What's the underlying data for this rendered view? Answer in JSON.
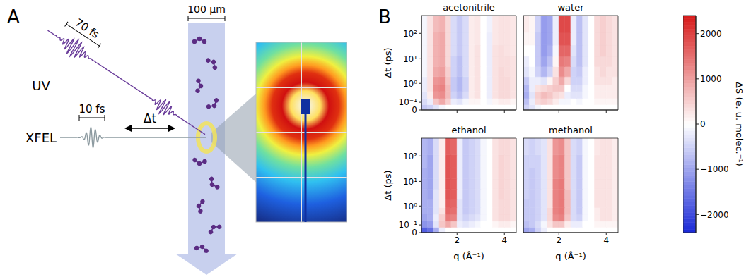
{
  "panel_a": {
    "label": "A",
    "uv": {
      "label": "UV",
      "duration": "70 fs"
    },
    "xfel": {
      "label": "XFEL",
      "duration": "10 fs"
    },
    "delay": "Δt",
    "jet_width": "100 µm"
  },
  "panel_b": {
    "label": "B"
  },
  "colorbar": {
    "label": "ΔS (e. u. molec.⁻¹)",
    "range": [
      -2400,
      2400
    ],
    "ticks": [
      {
        "value": -2000,
        "label": "−2000"
      },
      {
        "value": -1000,
        "label": "−1000"
      },
      0,
      1000,
      2000
    ]
  },
  "chart_data": [
    {
      "type": "heatmap",
      "title": "acetonitrile",
      "y_label": "Δt (ps)",
      "log": "y",
      "tick_labels": "y",
      "xlim": [
        0.5,
        4.5
      ],
      "xticks": [
        2,
        4
      ],
      "ylim": [
        0,
        500
      ],
      "yticks": [
        0,
        {
          "value": 0.1,
          "label": "10⁻¹"
        },
        {
          "value": 1,
          "label": "10⁰"
        },
        {
          "value": 10,
          "label": "10¹"
        },
        {
          "value": 100,
          "label": "10²"
        }
      ],
      "x": [
        0.625,
        0.875,
        1.125,
        1.375,
        1.625,
        1.875,
        2.125,
        2.375,
        2.625,
        2.875,
        3.125,
        3.375,
        3.625,
        3.875,
        4.125,
        4.375
      ],
      "y": [
        0.03,
        0.1,
        0.3,
        0.6,
        1.2,
        3,
        8,
        20,
        60,
        200
      ],
      "cells": [
        [
          -600,
          -500,
          -300,
          -100,
          0,
          0,
          0,
          0,
          0,
          0,
          0,
          0,
          0,
          0,
          0,
          0
        ],
        [
          -400,
          -200,
          600,
          900,
          500,
          -200,
          -300,
          -100,
          100,
          100,
          0,
          -100,
          100,
          200,
          200,
          100
        ],
        [
          -300,
          200,
          1100,
          1200,
          700,
          -500,
          -700,
          -400,
          200,
          300,
          0,
          -200,
          300,
          400,
          400,
          300
        ],
        [
          -200,
          300,
          1200,
          1300,
          700,
          -600,
          -800,
          -500,
          200,
          300,
          0,
          -200,
          300,
          400,
          400,
          300
        ],
        [
          -200,
          300,
          1100,
          1200,
          600,
          -600,
          -800,
          -500,
          200,
          300,
          0,
          -200,
          300,
          400,
          400,
          300
        ],
        [
          -100,
          300,
          900,
          1000,
          500,
          -500,
          -700,
          -400,
          200,
          300,
          0,
          -200,
          300,
          400,
          350,
          300
        ],
        [
          -100,
          300,
          800,
          900,
          400,
          -500,
          -700,
          -400,
          200,
          300,
          0,
          -200,
          300,
          350,
          350,
          300
        ],
        [
          -100,
          300,
          800,
          900,
          400,
          -400,
          -600,
          -400,
          200,
          300,
          0,
          -200,
          300,
          350,
          300,
          250
        ],
        [
          -100,
          300,
          800,
          900,
          400,
          -400,
          -600,
          -400,
          200,
          250,
          0,
          -200,
          250,
          300,
          300,
          250
        ],
        [
          -100,
          300,
          700,
          800,
          400,
          -400,
          -600,
          -400,
          200,
          250,
          0,
          -150,
          250,
          300,
          300,
          250
        ]
      ]
    },
    {
      "type": "heatmap",
      "title": "water",
      "log": "y",
      "tick_labels": false,
      "xlim": [
        0.5,
        4.5
      ],
      "xticks": [
        2,
        4
      ],
      "ylim": [
        0,
        500
      ],
      "yticks": [
        0,
        {
          "value": 0.1,
          "label": "10⁻¹"
        },
        {
          "value": 1,
          "label": "10⁰"
        },
        {
          "value": 10,
          "label": "10¹"
        },
        {
          "value": 100,
          "label": "10²"
        }
      ],
      "x": [
        0.625,
        0.875,
        1.125,
        1.375,
        1.625,
        1.875,
        2.125,
        2.375,
        2.625,
        2.875,
        3.125,
        3.375,
        3.625,
        3.875,
        4.125,
        4.375
      ],
      "y": [
        0.03,
        0.1,
        0.3,
        0.6,
        1.2,
        3,
        8,
        20,
        60,
        200
      ],
      "cells": [
        [
          -500,
          -300,
          -100,
          0,
          0,
          0,
          0,
          0,
          0,
          0,
          0,
          0,
          0,
          0,
          0,
          0
        ],
        [
          -700,
          -200,
          400,
          500,
          400,
          200,
          -100,
          -100,
          0,
          -100,
          0,
          0,
          100,
          100,
          100,
          100
        ],
        [
          -900,
          -300,
          500,
          700,
          600,
          400,
          300,
          -200,
          -300,
          -300,
          -100,
          0,
          200,
          200,
          200,
          200
        ],
        [
          -800,
          -200,
          300,
          400,
          500,
          600,
          600,
          0,
          -400,
          -400,
          -100,
          0,
          200,
          200,
          200,
          200
        ],
        [
          -600,
          -200,
          -200,
          -300,
          100,
          500,
          900,
          400,
          -500,
          -500,
          -200,
          0,
          300,
          300,
          300,
          200
        ],
        [
          -300,
          -100,
          -500,
          -800,
          -500,
          300,
          1200,
          900,
          -500,
          -600,
          -200,
          0,
          300,
          400,
          300,
          300
        ],
        [
          -200,
          0,
          -600,
          -1000,
          -700,
          100,
          1400,
          1300,
          -400,
          -700,
          -300,
          0,
          400,
          400,
          400,
          300
        ],
        [
          0,
          0,
          -600,
          -1100,
          -900,
          -100,
          1600,
          1600,
          -300,
          -700,
          -300,
          0,
          400,
          500,
          400,
          300
        ],
        [
          100,
          100,
          -600,
          -1100,
          -1000,
          -200,
          1800,
          1800,
          -200,
          -700,
          -300,
          0,
          400,
          500,
          400,
          300
        ],
        [
          200,
          100,
          -500,
          -1100,
          -1000,
          -200,
          1900,
          1900,
          -200,
          -700,
          -300,
          0,
          400,
          500,
          400,
          300
        ]
      ]
    },
    {
      "type": "heatmap",
      "title": "ethanol",
      "x_label": "q (Å⁻¹)",
      "y_label": "Δt (ps)",
      "log": "y",
      "xlim": [
        0.5,
        4.5
      ],
      "xticks": [
        2,
        4
      ],
      "ylim": [
        0,
        500
      ],
      "yticks": [
        0,
        {
          "value": 0.1,
          "label": "10⁻¹"
        },
        {
          "value": 1,
          "label": "10⁰"
        },
        {
          "value": 10,
          "label": "10¹"
        },
        {
          "value": 100,
          "label": "10²"
        }
      ],
      "x": [
        0.625,
        0.875,
        1.125,
        1.375,
        1.625,
        1.875,
        2.125,
        2.375,
        2.625,
        2.875,
        3.125,
        3.375,
        3.625,
        3.875,
        4.125,
        4.375
      ],
      "y": [
        0.03,
        0.1,
        0.3,
        0.6,
        1.2,
        3,
        8,
        20,
        60,
        200
      ],
      "cells": [
        [
          -1800,
          -1600,
          -900,
          -200,
          0,
          0,
          0,
          0,
          0,
          0,
          0,
          0,
          0,
          0,
          0,
          0
        ],
        [
          -1200,
          -1100,
          -300,
          600,
          900,
          600,
          -200,
          -300,
          -200,
          -100,
          0,
          0,
          100,
          200,
          200,
          100
        ],
        [
          -1000,
          -900,
          -200,
          500,
          1400,
          1300,
          -300,
          -500,
          -400,
          -300,
          -100,
          0,
          300,
          400,
          400,
          300
        ],
        [
          -900,
          -900,
          -300,
          300,
          1600,
          1500,
          -300,
          -600,
          -500,
          -400,
          -100,
          0,
          300,
          400,
          400,
          300
        ],
        [
          -900,
          -900,
          -300,
          200,
          1700,
          1600,
          -300,
          -600,
          -500,
          -400,
          -100,
          0,
          300,
          400,
          400,
          300
        ],
        [
          -900,
          -1000,
          -300,
          200,
          1800,
          1700,
          -200,
          -600,
          -500,
          -400,
          -100,
          0,
          300,
          450,
          400,
          300
        ],
        [
          -900,
          -1000,
          -400,
          200,
          1800,
          1700,
          -200,
          -600,
          -500,
          -400,
          -100,
          0,
          300,
          450,
          400,
          300
        ],
        [
          -900,
          -1000,
          -400,
          200,
          1800,
          1700,
          -200,
          -600,
          -500,
          -400,
          -100,
          0,
          300,
          450,
          400,
          300
        ],
        [
          -800,
          -1000,
          -400,
          200,
          1800,
          1700,
          -200,
          -600,
          -500,
          -400,
          -100,
          0,
          300,
          450,
          400,
          300
        ],
        [
          -800,
          -900,
          -400,
          200,
          1700,
          1600,
          -200,
          -600,
          -500,
          -400,
          -100,
          0,
          300,
          400,
          400,
          300
        ]
      ]
    },
    {
      "type": "heatmap",
      "title": "methanol",
      "x_label": "q (Å⁻¹)",
      "log": "y",
      "tick_labels": "x",
      "xlim": [
        0.5,
        4.5
      ],
      "xticks": [
        2,
        4
      ],
      "ylim": [
        0,
        500
      ],
      "yticks": [
        0,
        {
          "value": 0.1,
          "label": "10⁻¹"
        },
        {
          "value": 1,
          "label": "10⁰"
        },
        {
          "value": 10,
          "label": "10¹"
        },
        {
          "value": 100,
          "label": "10²"
        }
      ],
      "x": [
        0.625,
        0.875,
        1.125,
        1.375,
        1.625,
        1.875,
        2.125,
        2.375,
        2.625,
        2.875,
        3.125,
        3.375,
        3.625,
        3.875,
        4.125,
        4.375
      ],
      "y": [
        0.03,
        0.1,
        0.3,
        0.6,
        1.2,
        3,
        8,
        20,
        60,
        200
      ],
      "cells": [
        [
          -1000,
          -900,
          -500,
          -200,
          0,
          0,
          0,
          0,
          0,
          0,
          0,
          0,
          0,
          0,
          0,
          0
        ],
        [
          -700,
          -600,
          -400,
          -100,
          300,
          600,
          600,
          200,
          -200,
          -200,
          0,
          0,
          100,
          100,
          100,
          100
        ],
        [
          -600,
          -600,
          -500,
          -300,
          400,
          1200,
          1300,
          600,
          -400,
          -500,
          -100,
          0,
          200,
          300,
          300,
          200
        ],
        [
          -600,
          -600,
          -500,
          -300,
          400,
          1300,
          1400,
          700,
          -400,
          -600,
          -100,
          0,
          200,
          300,
          300,
          200
        ],
        [
          -600,
          -600,
          -500,
          -300,
          300,
          1300,
          1400,
          700,
          -400,
          -600,
          -100,
          0,
          300,
          300,
          300,
          200
        ],
        [
          -500,
          -600,
          -500,
          -300,
          300,
          1300,
          1400,
          700,
          -400,
          -600,
          -100,
          0,
          300,
          300,
          300,
          200
        ],
        [
          -500,
          -600,
          -500,
          -300,
          300,
          1300,
          1400,
          600,
          -400,
          -600,
          -100,
          0,
          300,
          300,
          300,
          200
        ],
        [
          -500,
          -600,
          -500,
          -300,
          300,
          1200,
          1300,
          600,
          -400,
          -600,
          -100,
          0,
          300,
          300,
          300,
          200
        ],
        [
          -500,
          -500,
          -500,
          -300,
          300,
          1200,
          1300,
          600,
          -400,
          -600,
          -100,
          0,
          300,
          300,
          300,
          200
        ],
        [
          -400,
          -500,
          -400,
          -300,
          300,
          1100,
          1200,
          600,
          -400,
          -500,
          -100,
          0,
          250,
          300,
          300,
          200
        ]
      ]
    }
  ]
}
